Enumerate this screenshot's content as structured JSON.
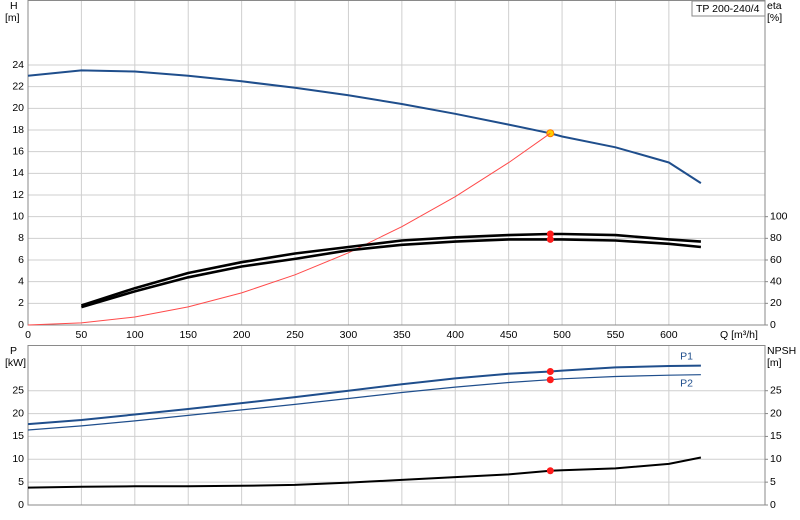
{
  "chart_data": [
    {
      "type": "line",
      "title": "TP 200-240/4",
      "x_label": "Q [m³/h]",
      "y_label": "H",
      "y_unit": "[m]",
      "y2_label": "eta",
      "y2_unit": "[%]",
      "x": [
        0,
        50,
        100,
        150,
        200,
        250,
        300,
        350,
        400,
        450,
        489,
        500,
        550,
        600,
        630
      ],
      "xlim": [
        0,
        690
      ],
      "xticks": [
        0,
        50,
        100,
        150,
        200,
        250,
        300,
        350,
        400,
        450,
        500,
        550,
        600
      ],
      "ylim": [
        0,
        30
      ],
      "yticks": [
        0,
        2,
        4,
        6,
        8,
        10,
        12,
        14,
        16,
        18,
        20,
        22,
        24
      ],
      "y2lim": [
        0,
        300
      ],
      "y2ticks": [
        0,
        20,
        40,
        60,
        80,
        100
      ],
      "grid": true,
      "operating_point": 489,
      "series": [
        {
          "color": "#1f4e8c",
          "marker": "#ffd000",
          "values": [
            23.0,
            23.5,
            23.4,
            23.0,
            22.5,
            21.9,
            21.2,
            20.4,
            19.5,
            18.5,
            17.7,
            17.4,
            16.4,
            15.0,
            13.1
          ]
        },
        {
          "color": "#ff4a4a",
          "values": [
            0,
            0.19,
            0.74,
            1.67,
            2.96,
            4.63,
            6.66,
            9.07,
            11.84,
            14.99,
            17.7,
            null,
            null,
            null,
            null
          ]
        },
        {
          "color": "#000000",
          "marker": "#ff1a1a",
          "axis": "y2",
          "values": [
            null,
            18,
            34,
            48,
            58,
            66,
            72,
            78,
            81,
            83,
            84,
            84,
            83,
            79,
            77
          ]
        },
        {
          "color": "#000000",
          "marker": "#ff1a1a",
          "axis": "y2",
          "values": [
            null,
            16.5,
            31,
            44,
            54,
            61,
            69,
            74,
            77,
            79,
            79,
            79,
            78,
            75,
            72
          ]
        }
      ]
    },
    {
      "type": "line",
      "y_label": "P",
      "y_unit": "[kW]",
      "y2_label": "NPSH",
      "y2_unit": "[m]",
      "x": [
        0,
        50,
        100,
        150,
        200,
        250,
        300,
        350,
        400,
        450,
        489,
        500,
        550,
        600,
        630
      ],
      "xlim": [
        0,
        690
      ],
      "xticks": [
        0,
        50,
        100,
        150,
        200,
        250,
        300,
        350,
        400,
        450,
        500,
        550,
        600
      ],
      "show_x_tick_labels": false,
      "ylim": [
        0,
        35
      ],
      "yticks": [
        0,
        5,
        10,
        15,
        20,
        25
      ],
      "y2lim": [
        0,
        35
      ],
      "y2ticks": [
        0,
        5,
        10,
        15,
        20,
        25
      ],
      "grid": true,
      "operating_point": 489,
      "series": [
        {
          "name": "P1",
          "color": "#1f4e8c",
          "marker": "#ff1a1a",
          "values": [
            17.7,
            18.6,
            19.8,
            21.0,
            22.3,
            23.6,
            25.0,
            26.4,
            27.7,
            28.7,
            29.2,
            29.4,
            30.1,
            30.4,
            30.5
          ]
        },
        {
          "name": "P2",
          "color": "#1f4e8c",
          "marker": "#ff1a1a",
          "values": [
            16.4,
            17.3,
            18.4,
            19.6,
            20.8,
            22.0,
            23.3,
            24.6,
            25.8,
            26.8,
            27.4,
            27.6,
            28.1,
            28.4,
            28.5
          ]
        },
        {
          "color": "#000000",
          "marker": "#ff1a1a",
          "axis": "y2",
          "values": [
            3.8,
            4.0,
            4.1,
            4.1,
            4.2,
            4.4,
            4.9,
            5.5,
            6.1,
            6.7,
            7.5,
            7.6,
            8.0,
            9.0,
            10.4
          ]
        }
      ]
    }
  ]
}
